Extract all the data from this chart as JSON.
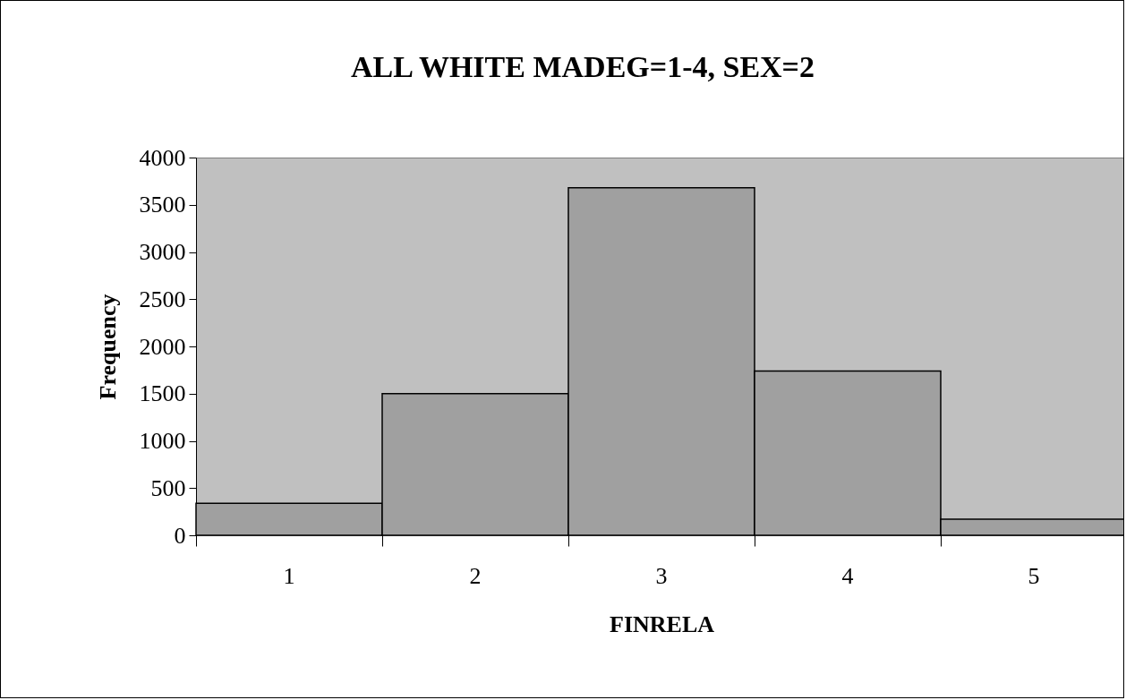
{
  "chart_data": {
    "type": "bar",
    "title": "ALL WHITE MADEG=1-4, SEX=2",
    "xlabel": "FINRELA",
    "ylabel": "Frequency",
    "categories": [
      "1",
      "2",
      "3",
      "4",
      "5"
    ],
    "values": [
      340,
      1500,
      3680,
      1740,
      170
    ],
    "color": "#a0a0a0",
    "ylim": [
      0,
      4000
    ],
    "yticks": [
      0,
      500,
      1000,
      1500,
      2000,
      2500,
      3000,
      3500,
      4000
    ],
    "grid": false
  }
}
